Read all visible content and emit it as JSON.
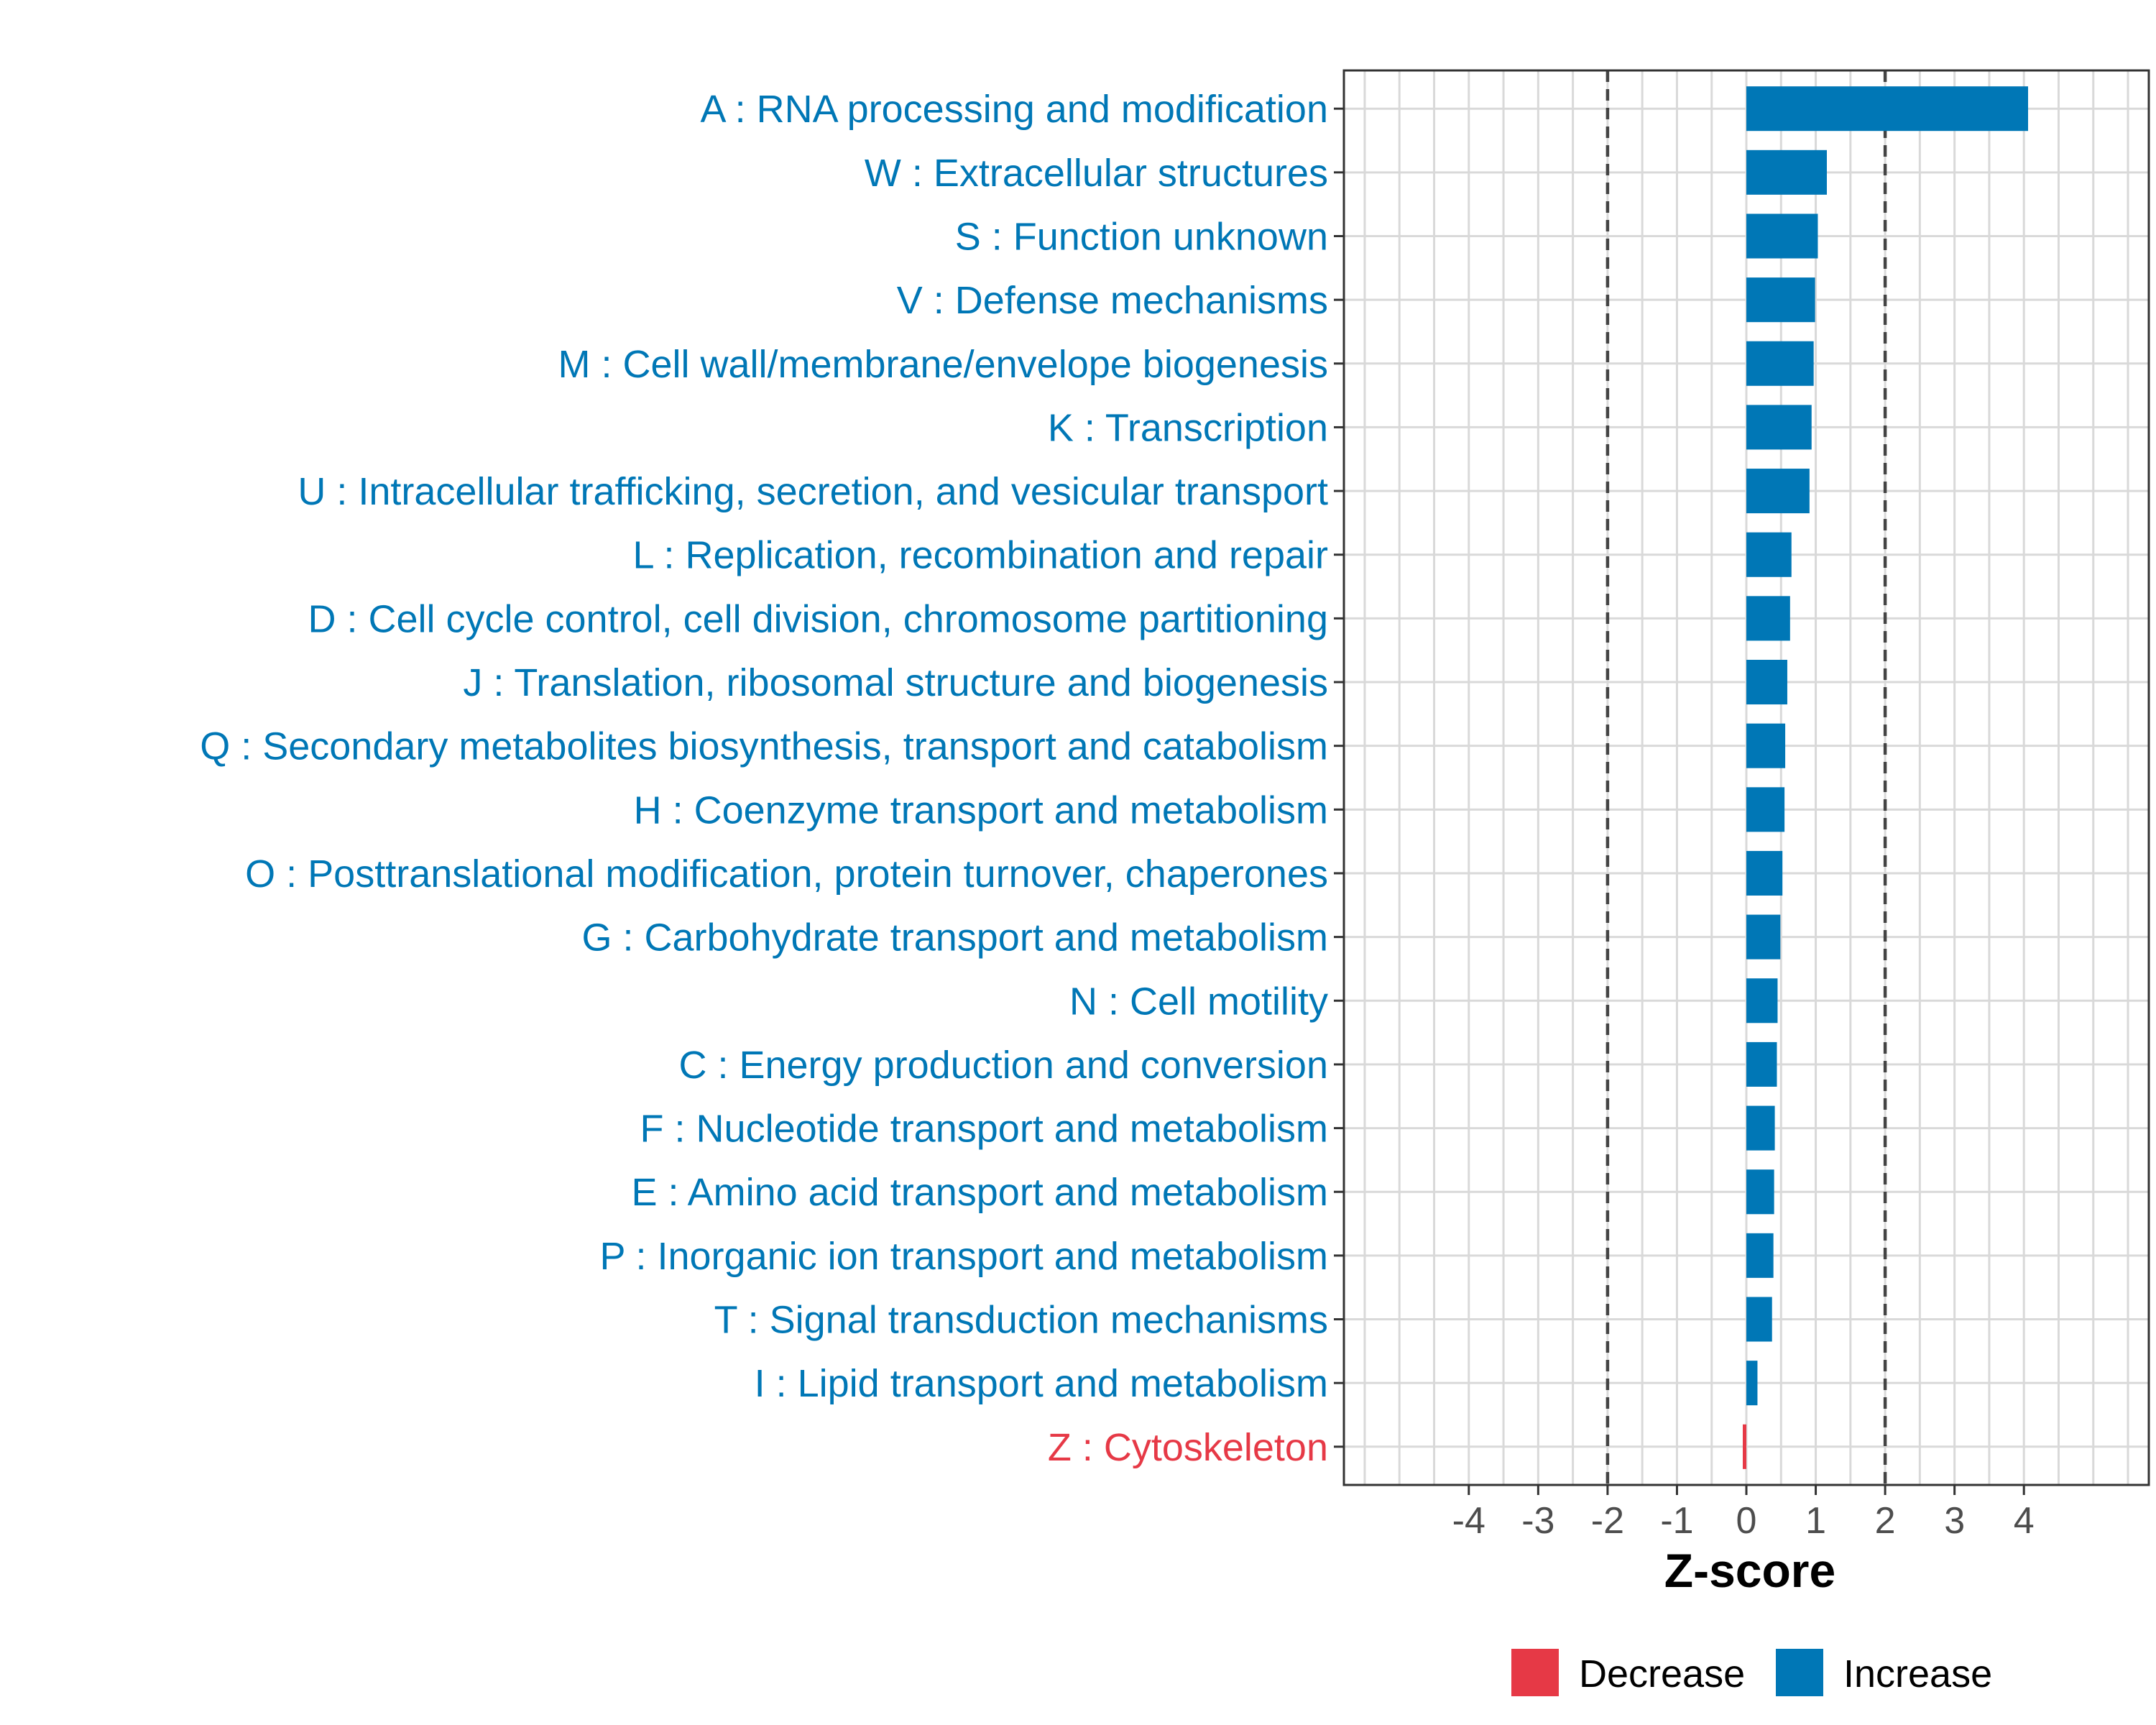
{
  "chart_data": {
    "type": "bar",
    "orientation": "horizontal",
    "title": "",
    "xlabel": "Z-score",
    "ylabel": "",
    "xlim": [
      -5.8,
      5.8
    ],
    "xticks": [
      -4,
      -3,
      -2,
      -1,
      0,
      1,
      2,
      3,
      4
    ],
    "threshold_lines": [
      -2,
      2
    ],
    "grid": true,
    "categories": [
      "A : RNA processing and modification",
      "W : Extracellular structures",
      "S : Function unknown",
      "V : Defense mechanisms",
      "M : Cell wall/membrane/envelope biogenesis",
      "K : Transcription",
      "U : Intracellular trafficking, secretion, and vesicular transport",
      "L : Replication, recombination and repair",
      "D : Cell cycle control, cell division, chromosome partitioning",
      "J : Translation, ribosomal structure and biogenesis",
      "Q : Secondary metabolites biosynthesis, transport and catabolism",
      "H : Coenzyme transport and metabolism",
      "O : Posttranslational modification, protein turnover, chaperones",
      "G : Carbohydrate transport and metabolism",
      "N : Cell motility",
      "C : Energy production and conversion",
      "F : Nucleotide transport and metabolism",
      "E : Amino acid transport and metabolism",
      "P : Inorganic ion transport and metabolism",
      "T : Signal transduction mechanisms",
      "I : Lipid transport and metabolism",
      "Z : Cytoskeleton"
    ],
    "values": [
      4.06,
      1.16,
      1.03,
      0.99,
      0.97,
      0.94,
      0.91,
      0.65,
      0.63,
      0.59,
      0.56,
      0.55,
      0.52,
      0.49,
      0.45,
      0.44,
      0.41,
      0.4,
      0.39,
      0.37,
      0.16,
      -0.02
    ],
    "direction": [
      "Increase",
      "Increase",
      "Increase",
      "Increase",
      "Increase",
      "Increase",
      "Increase",
      "Increase",
      "Increase",
      "Increase",
      "Increase",
      "Increase",
      "Increase",
      "Increase",
      "Increase",
      "Increase",
      "Increase",
      "Increase",
      "Increase",
      "Increase",
      "Increase",
      "Decrease"
    ],
    "legend": [
      {
        "name": "Decrease",
        "color": "#e63946"
      },
      {
        "name": "Increase",
        "color": "#0077b6"
      }
    ],
    "legend_position": "bottom"
  },
  "colors": {
    "increase": "#0077b6",
    "decrease": "#e63946",
    "grid": "#d9d9d9",
    "panel_border": "#333333",
    "threshold": "#444444"
  }
}
